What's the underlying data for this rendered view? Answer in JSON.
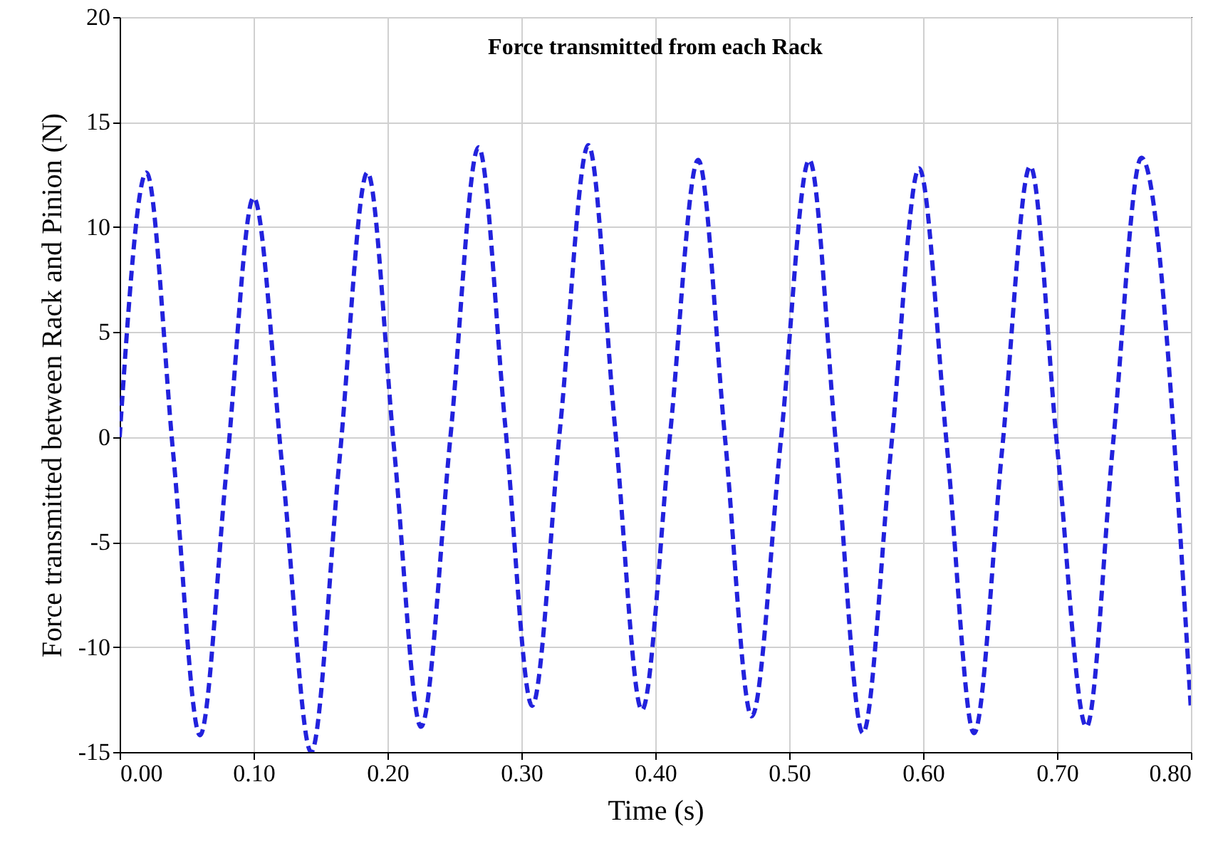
{
  "chart_data": {
    "type": "line",
    "title": "Force transmitted from each Rack",
    "xlabel": "Time (s)",
    "ylabel": "Force transmitted between Rack and Pinion (N)",
    "x": [
      0,
      0.02,
      0.04,
      0.06,
      0.08,
      0.1,
      0.122,
      0.143,
      0.164,
      0.185,
      0.205,
      0.225,
      0.247,
      0.268,
      0.288,
      0.308,
      0.329,
      0.35,
      0.37,
      0.39,
      0.411,
      0.432,
      0.452,
      0.472,
      0.494,
      0.515,
      0.535,
      0.555,
      0.576,
      0.597,
      0.618,
      0.638,
      0.659,
      0.68,
      0.7,
      0.722,
      0.742,
      0.763,
      0.8
    ],
    "series": [
      {
        "color": "#2222dd",
        "values": [
          0,
          12.6,
          -0.8,
          -14.2,
          -1.4,
          11.4,
          -1.8,
          -15,
          -1.2,
          12.6,
          -0.6,
          -13.8,
          0,
          13.8,
          0.5,
          -12.8,
          0.5,
          13.9,
          0.4,
          -13,
          0.1,
          13.2,
          0,
          -13.3,
          0,
          13.2,
          -0.4,
          -14.1,
          -0.6,
          12.8,
          -0.6,
          -14.1,
          -0.6,
          12.9,
          -0.4,
          -13.8,
          -0.2,
          13.3,
          -13
        ]
      }
    ],
    "xlim": [
      0,
      0.8
    ],
    "xticks": [
      {
        "value": 0,
        "label": "0.00"
      },
      {
        "value": 0.1,
        "label": "0.10"
      },
      {
        "value": 0.2,
        "label": "0.20"
      },
      {
        "value": 0.3,
        "label": "0.30"
      },
      {
        "value": 0.4,
        "label": "0.40"
      },
      {
        "value": 0.5,
        "label": "0.50"
      },
      {
        "value": 0.6,
        "label": "0.60"
      },
      {
        "value": 0.7,
        "label": "0.70"
      },
      {
        "value": 0.8,
        "label": "0.80"
      }
    ],
    "ylim": [
      -15,
      20
    ],
    "yticks": [
      -15,
      -10,
      -5,
      0,
      5,
      10,
      15,
      20
    ],
    "grid": true,
    "line_style": "dashed",
    "marker": "none"
  }
}
